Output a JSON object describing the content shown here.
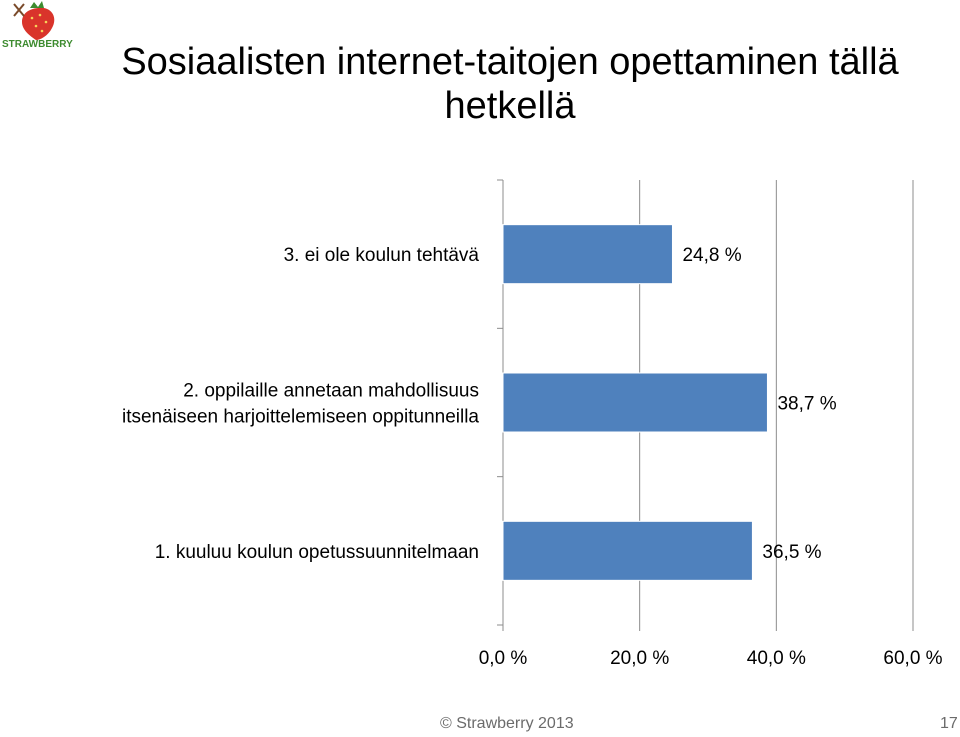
{
  "slide": {
    "title": "Sosiaalisten internet-taitojen opettaminen tällä hetkellä",
    "logo_text": "STRAWBERRY",
    "copyright": "© Strawberry 2013",
    "page_number": "17"
  },
  "chart_data": {
    "type": "bar",
    "orientation": "horizontal",
    "categories": [
      [
        "1. kuuluu koulun opetussuunnitelmaan"
      ],
      [
        "2. oppilaille annetaan mahdollisuus",
        "itsenäiseen harjoittelemiseen oppitunneilla"
      ],
      [
        "3. ei ole koulun tehtävä"
      ]
    ],
    "values": [
      36.5,
      38.7,
      24.8
    ],
    "data_labels": [
      "36,5 %",
      "38,7 %",
      "24,8 %"
    ],
    "xlim": [
      0,
      60
    ],
    "xticks": [
      0,
      20,
      40,
      60
    ],
    "xtick_labels": [
      "0,0 %",
      "20,0 %",
      "40,0 %",
      "60,0 %"
    ],
    "grid": "vertical",
    "bar_color": "#4f81bd",
    "grid_color": "#8c8c8c"
  }
}
